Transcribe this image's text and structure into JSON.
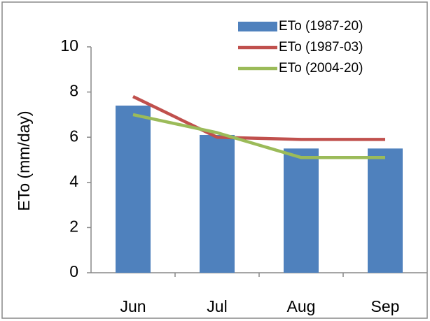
{
  "chart_data": {
    "type": "bar_line",
    "y_label": "ETo (mm/day)",
    "categories": [
      "Jun",
      "Jul",
      "Aug",
      "Sep"
    ],
    "series": [
      {
        "name": "ETo (1987-20)",
        "kind": "bar",
        "color": "#4f81bd",
        "values": [
          7.4,
          6.1,
          5.5,
          5.5
        ]
      },
      {
        "name": "ETo (1987-03)",
        "kind": "line",
        "color": "#c0504d",
        "values": [
          7.8,
          6.0,
          5.9,
          5.9
        ]
      },
      {
        "name": "ETo (2004-20)",
        "kind": "line",
        "color": "#9bbb59",
        "values": [
          7.0,
          6.2,
          5.1,
          5.1
        ]
      }
    ],
    "ylim": [
      0,
      10
    ],
    "yticks": [
      0,
      2,
      4,
      6,
      8,
      10
    ],
    "grid": false,
    "legend": "upper right"
  }
}
